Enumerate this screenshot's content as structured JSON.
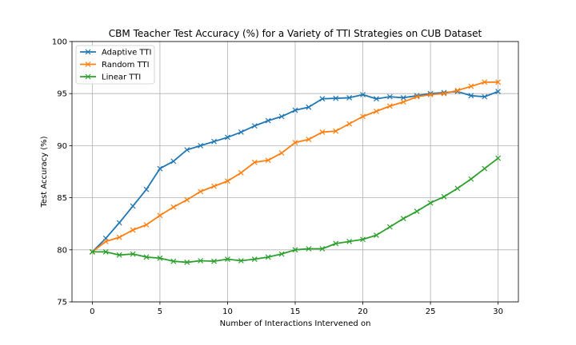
{
  "chart_data": {
    "type": "line",
    "title": "CBM Teacher Test Accuracy (%) for a Variety of TTI Strategies on CUB Dataset",
    "xlabel": "Number of Interactions Intervened on",
    "ylabel": "Test Accuracy (%)",
    "xlim": [
      -1.5,
      31.5
    ],
    "ylim": [
      75,
      100
    ],
    "xticks": [
      0,
      5,
      10,
      15,
      20,
      25,
      30
    ],
    "yticks": [
      75,
      80,
      85,
      90,
      95,
      100
    ],
    "grid": true,
    "legend_position": "upper-left",
    "x": [
      0,
      1,
      2,
      3,
      4,
      5,
      6,
      7,
      8,
      9,
      10,
      11,
      12,
      13,
      14,
      15,
      16,
      17,
      18,
      19,
      20,
      21,
      22,
      23,
      24,
      25,
      26,
      27,
      28,
      29,
      30
    ],
    "series": [
      {
        "name": "Adaptive TTI",
        "color": "#1f77b4",
        "values": [
          79.8,
          81.1,
          82.6,
          84.2,
          85.8,
          87.8,
          88.5,
          89.6,
          90.0,
          90.4,
          90.8,
          91.3,
          91.9,
          92.4,
          92.8,
          93.4,
          93.7,
          94.5,
          94.55,
          94.6,
          94.9,
          94.5,
          94.7,
          94.6,
          94.8,
          95.0,
          95.1,
          95.2,
          94.8,
          94.7,
          95.2
        ]
      },
      {
        "name": "Random TTI",
        "color": "#ff7f0e",
        "values": [
          79.8,
          80.8,
          81.2,
          81.9,
          82.4,
          83.3,
          84.1,
          84.8,
          85.6,
          86.1,
          86.6,
          87.4,
          88.4,
          88.6,
          89.3,
          90.3,
          90.6,
          91.3,
          91.4,
          92.1,
          92.8,
          93.3,
          93.8,
          94.2,
          94.7,
          94.9,
          95.0,
          95.3,
          95.7,
          96.1,
          96.1
        ]
      },
      {
        "name": "Linear TTI",
        "color": "#2ca02c",
        "values": [
          79.8,
          79.8,
          79.5,
          79.6,
          79.3,
          79.2,
          78.9,
          78.8,
          78.95,
          78.9,
          79.1,
          78.95,
          79.1,
          79.3,
          79.6,
          80.0,
          80.1,
          80.1,
          80.6,
          80.8,
          81.0,
          81.4,
          82.2,
          83.0,
          83.7,
          84.5,
          85.1,
          85.9,
          86.8,
          87.8,
          88.8
        ]
      }
    ]
  }
}
